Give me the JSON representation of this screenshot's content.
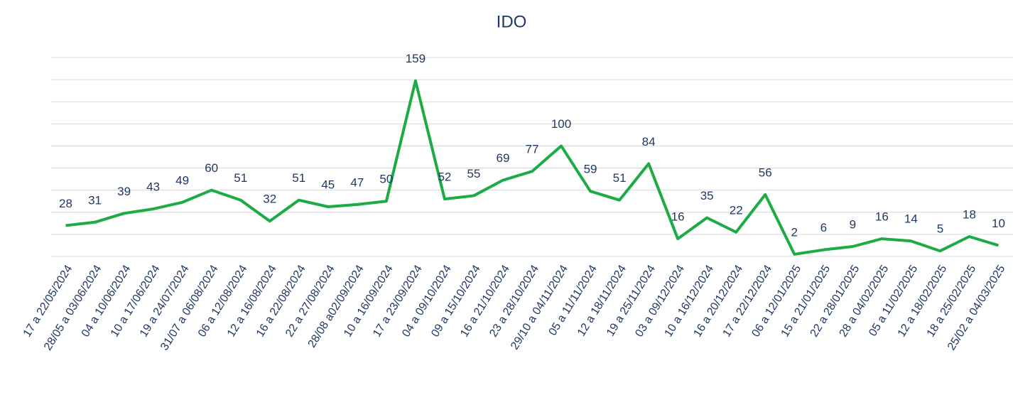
{
  "chart_data": {
    "type": "line",
    "title": "IDO",
    "categories": [
      "17 a 22/05/2024",
      "28/05 a 03/06/2024",
      "04 a 10/06/2024",
      "10 a 17/06/2024",
      "19 a 24/07/2024",
      "31/07 a 06/08/2024",
      "06 a 12/08/2024",
      "12 a 16/08/2024",
      "16 a 22/08/2024",
      "22 a 27/08/2024",
      "28/08 a02/09/2024",
      "10 a 16/09/2024",
      "17 a 23/09/2024",
      "04 a 09/10/2024",
      "09 a 15/10/2024",
      "16 a 21/10/2024",
      "23 a 28/10/2024",
      "29/10 a 04/11/2024",
      "05 a 11/11/2024",
      "12 a 18/11/2024",
      "19 a 25/11/2024",
      "03 a 09/12/2024",
      "10 a 16/12/2024",
      "16 a 20/12/2024",
      "17 a 22/12/2024",
      "06 a 12/01/2025",
      "15 a 21/01/2025",
      "22 a 28/01/2025",
      "28 a 04/02/2025",
      "05 a 11/02/2025",
      "12 a 18/02/2025",
      "18 a 25/02/2025",
      "25/02 a 04/03/2025"
    ],
    "values": [
      28,
      31,
      39,
      43,
      49,
      60,
      51,
      32,
      51,
      45,
      47,
      50,
      159,
      52,
      55,
      69,
      77,
      100,
      59,
      51,
      84,
      16,
      35,
      22,
      56,
      2,
      6,
      9,
      16,
      14,
      5,
      18,
      10
    ],
    "color": "#1cab45",
    "ylim": [
      0,
      180
    ],
    "yticks": [
      0,
      20,
      40,
      60,
      80,
      100,
      120,
      140,
      160,
      180
    ],
    "grid": true
  }
}
